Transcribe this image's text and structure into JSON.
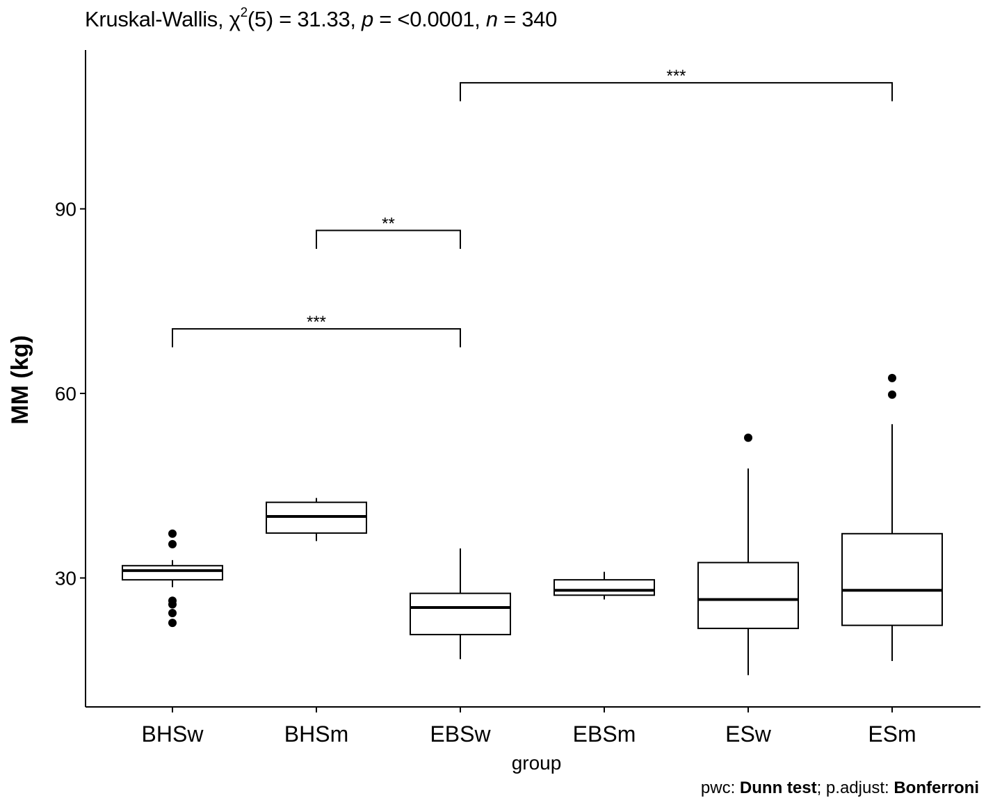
{
  "header": {
    "prefix": "Kruskal-Wallis, ",
    "chi": "χ",
    "sup": "2",
    "df_part": "(5) = 31.33, ",
    "p_symbol": "p",
    "p_part": " = <0.0001, ",
    "n_symbol": "n",
    "n_part": " = 340"
  },
  "footer": {
    "pwc_label": "pwc: ",
    "pwc_value": "Dunn test",
    "sep": "; p.adjust: ",
    "adjust_value": "Bonferroni"
  },
  "chart_data": {
    "type": "box",
    "title": "Kruskal-Wallis, χ2(5) = 31.33, p = <0.0001, n = 340",
    "xlabel": "group",
    "ylabel": "MM (kg)",
    "ylim": [
      10,
      116
    ],
    "yticks": [
      30,
      60,
      90
    ],
    "grid": false,
    "categories": [
      "BHSw",
      "BHSm",
      "EBSw",
      "EBSm",
      "ESw",
      "ESm"
    ],
    "boxes": [
      {
        "category": "BHSw",
        "whisker_low": 28.5,
        "q1": 29.7,
        "median": 31.2,
        "q3": 32.0,
        "whisker_high": 32.9,
        "outliers": [
          37.2,
          35.5,
          26.3,
          25.7,
          24.3,
          22.7
        ]
      },
      {
        "category": "BHSm",
        "whisker_low": 36.0,
        "q1": 37.3,
        "median": 40.0,
        "q3": 42.3,
        "whisker_high": 43.0,
        "outliers": []
      },
      {
        "category": "EBSw",
        "whisker_low": 16.8,
        "q1": 20.8,
        "median": 25.2,
        "q3": 27.5,
        "whisker_high": 34.8,
        "outliers": []
      },
      {
        "category": "EBSm",
        "whisker_low": 26.5,
        "q1": 27.2,
        "median": 28.0,
        "q3": 29.7,
        "whisker_high": 31.0,
        "outliers": []
      },
      {
        "category": "ESw",
        "whisker_low": 14.2,
        "q1": 21.8,
        "median": 26.5,
        "q3": 32.5,
        "whisker_high": 47.8,
        "outliers": [
          52.8
        ]
      },
      {
        "category": "ESm",
        "whisker_low": 16.5,
        "q1": 22.3,
        "median": 28.0,
        "q3": 37.2,
        "whisker_high": 55.0,
        "outliers": [
          62.5,
          59.8
        ]
      }
    ],
    "comparisons": [
      {
        "from": "BHSw",
        "to": "EBSw",
        "label": "***",
        "y": 70.5,
        "tip_low": 67.5
      },
      {
        "from": "BHSm",
        "to": "EBSw",
        "label": "**",
        "y": 86.5,
        "tip_low": 83.5
      },
      {
        "from": "EBSw",
        "to": "ESm",
        "label": "***",
        "y": 110.5,
        "tip_low": 107.5
      }
    ]
  }
}
